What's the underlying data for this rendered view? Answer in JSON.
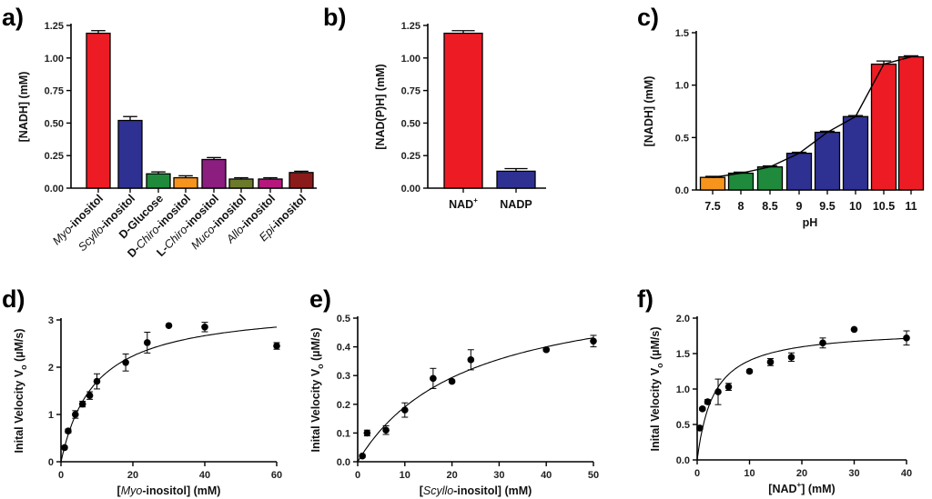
{
  "chart_data": [
    {
      "panel": "a)",
      "type": "bar",
      "ylabel": "[NADH] (mM)",
      "xlabel": "",
      "ylim": [
        0,
        1.25
      ],
      "yticks": [
        "0.00",
        "0.25",
        "0.50",
        "0.75",
        "1.00",
        "1.25"
      ],
      "categories": [
        {
          "prefix": "",
          "italic": "Myo",
          "suffix": "-inositol"
        },
        {
          "prefix": "",
          "italic": "Scyllo",
          "suffix": "-inositol"
        },
        {
          "prefix": "D-Glucose",
          "italic": "",
          "suffix": ""
        },
        {
          "prefix": "D-",
          "italic": "Chiro",
          "suffix": "-inositol"
        },
        {
          "prefix": "L-",
          "italic": "Chiro",
          "suffix": "-inositol"
        },
        {
          "prefix": "",
          "italic": "Muco",
          "suffix": "-inositol"
        },
        {
          "prefix": "",
          "italic": "Allo",
          "suffix": "-inositol"
        },
        {
          "prefix": "",
          "italic": "Epi",
          "suffix": "-inositol"
        }
      ],
      "values": [
        1.19,
        0.52,
        0.11,
        0.08,
        0.22,
        0.07,
        0.07,
        0.12
      ],
      "errors": [
        0.02,
        0.03,
        0.015,
        0.015,
        0.015,
        0.01,
        0.01,
        0.01
      ],
      "colors": [
        "#ed1c24",
        "#2e3192",
        "#1f8a3b",
        "#f7941d",
        "#8b1e7e",
        "#6b7a2a",
        "#b5177d",
        "#8b1a1a"
      ]
    },
    {
      "panel": "b)",
      "type": "bar",
      "ylabel": "[NAD(P)H] (mM)",
      "xlabel": "",
      "ylim": [
        0,
        1.25
      ],
      "yticks": [
        "0.00",
        "0.25",
        "0.50",
        "0.75",
        "1.00",
        "1.25"
      ],
      "categories": [
        {
          "label": "NAD",
          "sup": "+"
        },
        {
          "label": "NADP",
          "sup": ""
        }
      ],
      "values": [
        1.19,
        0.13
      ],
      "errors": [
        0.02,
        0.02
      ],
      "colors": [
        "#ed1c24",
        "#2e3192"
      ]
    },
    {
      "panel": "c)",
      "type": "bar",
      "ylabel": "[NADH] (mM)",
      "xlabel": "pH",
      "ylim": [
        0,
        1.5
      ],
      "yticks": [
        "0.0",
        "0.5",
        "1.0",
        "1.5"
      ],
      "categories": [
        "7.5",
        "8",
        "8.5",
        "9",
        "9.5",
        "10",
        "10.5",
        "11"
      ],
      "values": [
        0.12,
        0.16,
        0.22,
        0.35,
        0.55,
        0.7,
        1.2,
        1.27
      ],
      "errors": [
        0.01,
        0.01,
        0.01,
        0.01,
        0.01,
        0.01,
        0.03,
        0.01
      ],
      "colors": [
        "#f7941d",
        "#1f8a3b",
        "#1f8a3b",
        "#2e3192",
        "#2e3192",
        "#2e3192",
        "#ed1c24",
        "#ed1c24"
      ],
      "line": true
    },
    {
      "panel": "d)",
      "type": "scatter",
      "xlabel_parts": [
        "[",
        "Myo",
        "-inositol] (mM)"
      ],
      "ylabel": "Inital Velocity V",
      "ylabel_sub": "o",
      "ylabel_unit": " (µM/s)",
      "xlim": [
        0,
        60
      ],
      "ylim": [
        0,
        3
      ],
      "xticks": [
        0,
        20,
        40,
        60
      ],
      "yticks": [
        0,
        1,
        2,
        3
      ],
      "ytick_labels": [
        "0",
        "1",
        "2",
        "3"
      ],
      "x": [
        1,
        2,
        4,
        6,
        8,
        10,
        18,
        24,
        30,
        40,
        60
      ],
      "y": [
        0.3,
        0.65,
        1.0,
        1.22,
        1.4,
        1.7,
        2.1,
        2.52,
        2.88,
        2.85,
        2.45
      ],
      "errors": [
        0.03,
        0.04,
        0.08,
        0.06,
        0.08,
        0.16,
        0.18,
        0.22,
        0.02,
        0.1,
        0.07
      ],
      "fit": {
        "model": "michaelis-menten",
        "vmax": 3.3,
        "km": 9.5
      }
    },
    {
      "panel": "e)",
      "type": "scatter",
      "xlabel_parts": [
        "[",
        "Scyllo",
        "-inositol] (mM)"
      ],
      "ylabel": "Inital Velocity V",
      "ylabel_sub": "o",
      "ylabel_unit": " (µM/s)",
      "xlim": [
        0,
        50
      ],
      "ylim": [
        0,
        0.5
      ],
      "xticks": [
        0,
        10,
        20,
        30,
        40,
        50
      ],
      "yticks": [
        0,
        0.1,
        0.2,
        0.3,
        0.4,
        0.5
      ],
      "ytick_labels": [
        "0.0",
        "0.1",
        "0.2",
        "0.3",
        "0.4",
        "0.5"
      ],
      "x": [
        1,
        2,
        6,
        10,
        16,
        20,
        24,
        40,
        50
      ],
      "y": [
        0.02,
        0.1,
        0.11,
        0.18,
        0.29,
        0.28,
        0.355,
        0.39,
        0.42
      ],
      "errors": [
        0.005,
        0.01,
        0.015,
        0.025,
        0.035,
        0.005,
        0.035,
        0.005,
        0.02
      ],
      "fit": {
        "model": "michaelis-menten",
        "vmax": 0.63,
        "km": 23
      }
    },
    {
      "panel": "f)",
      "type": "scatter",
      "xlabel_parts": [
        "[NAD",
        "+",
        "] (mM)"
      ],
      "ylabel": "Inital Velocity V",
      "ylabel_sub": "o",
      "ylabel_unit": " (µM/s)",
      "xlim": [
        0,
        40
      ],
      "ylim": [
        0,
        2.0
      ],
      "xticks": [
        0,
        10,
        20,
        30,
        40
      ],
      "yticks": [
        0,
        0.5,
        1.0,
        1.5,
        2.0
      ],
      "ytick_labels": [
        "0.0",
        "0.5",
        "1.0",
        "1.5",
        "2.0"
      ],
      "x": [
        0.5,
        1,
        2,
        4,
        6,
        10,
        14,
        18,
        24,
        30,
        40
      ],
      "y": [
        0.45,
        0.72,
        0.82,
        0.96,
        1.03,
        1.25,
        1.38,
        1.45,
        1.65,
        1.84,
        1.72
      ],
      "errors": [
        0.02,
        0.02,
        0.03,
        0.18,
        0.05,
        0.02,
        0.05,
        0.06,
        0.07,
        0.01,
        0.1
      ],
      "fit": {
        "model": "michaelis-menten",
        "vmax": 1.85,
        "km": 3.2
      }
    }
  ]
}
